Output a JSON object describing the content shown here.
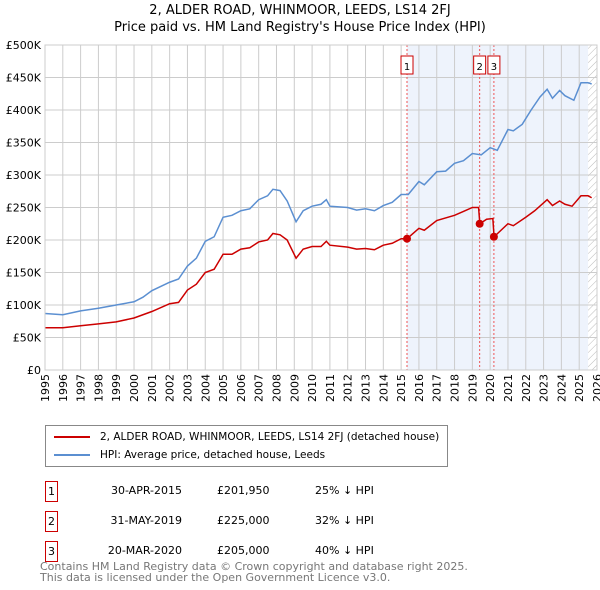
{
  "chart_data": {
    "type": "line",
    "title": "2, ALDER ROAD, WHINMOOR, LEEDS, LS14 2FJ",
    "subtitle": "Price paid vs. HM Land Registry's House Price Index (HPI)",
    "xlim": [
      1995,
      2026
    ],
    "ylim": [
      0,
      500000
    ],
    "x_ticks": [
      "1995",
      "1996",
      "1997",
      "1998",
      "1999",
      "2000",
      "2001",
      "2002",
      "2003",
      "2004",
      "2005",
      "2006",
      "2007",
      "2008",
      "2009",
      "2010",
      "2011",
      "2012",
      "2013",
      "2014",
      "2015",
      "2016",
      "2017",
      "2018",
      "2019",
      "2020",
      "2021",
      "2022",
      "2023",
      "2024",
      "2025",
      "2026"
    ],
    "y_ticks": [
      {
        "v": 0,
        "label": "£0"
      },
      {
        "v": 50000,
        "label": "£50K"
      },
      {
        "v": 100000,
        "label": "£100K"
      },
      {
        "v": 150000,
        "label": "£150K"
      },
      {
        "v": 200000,
        "label": "£200K"
      },
      {
        "v": 250000,
        "label": "£250K"
      },
      {
        "v": 300000,
        "label": "£300K"
      },
      {
        "v": 350000,
        "label": "£350K"
      },
      {
        "v": 400000,
        "label": "£400K"
      },
      {
        "v": 450000,
        "label": "£450K"
      },
      {
        "v": 500000,
        "label": "£500K"
      }
    ],
    "grid": true,
    "shaded_range": [
      2015.33,
      2025.5
    ],
    "hatched_from": 2025.5,
    "series": [
      {
        "name": "2, ALDER ROAD, WHINMOOR, LEEDS, LS14 2FJ (detached house)",
        "color": "#cc0000",
        "x": [
          1995,
          1996,
          1997,
          1998,
          1999,
          2000,
          2001,
          2002,
          2002.5,
          2003,
          2003.5,
          2004,
          2004.5,
          2005,
          2005.5,
          2006,
          2006.5,
          2007,
          2007.5,
          2007.8,
          2008.2,
          2008.6,
          2009.1,
          2009.5,
          2010,
          2010.5,
          2010.8,
          2011,
          2012,
          2012.5,
          2013,
          2013.5,
          2014,
          2014.5,
          2015,
          2015.33,
          2016,
          2016.3,
          2017,
          2018,
          2018.5,
          2019,
          2019.35,
          2019.42,
          2019.8,
          2020.15,
          2020.22,
          2021,
          2021.3,
          2022,
          2022.5,
          2023.2,
          2023.5,
          2023.9,
          2024.2,
          2024.6,
          2025.1,
          2025.5,
          2025.7
        ],
        "y": [
          65,
          65,
          68,
          71,
          74,
          80,
          90,
          102,
          104,
          123,
          132,
          150,
          155,
          178,
          178,
          186,
          188,
          197,
          200,
          210,
          208,
          200,
          172,
          186,
          190,
          190,
          198,
          192,
          189,
          186,
          187,
          185,
          192,
          195,
          202,
          202,
          218,
          215,
          230,
          238,
          244,
          250,
          250,
          225,
          232,
          233,
          205,
          225,
          222,
          235,
          245,
          262,
          253,
          260,
          255,
          252,
          268,
          268,
          265
        ]
      },
      {
        "name": "HPI: Average price, detached house, Leeds",
        "color": "#5b8fd1",
        "x": [
          1995,
          1996,
          1997,
          1998,
          1999,
          2000,
          2000.5,
          2001,
          2002,
          2002.5,
          2003,
          2003.5,
          2004,
          2004.5,
          2005,
          2005.5,
          2006,
          2006.5,
          2007,
          2007.5,
          2007.8,
          2008.2,
          2008.6,
          2009.1,
          2009.5,
          2010,
          2010.5,
          2010.8,
          2011,
          2012,
          2012.5,
          2013,
          2013.5,
          2014,
          2014.5,
          2015,
          2015.4,
          2016,
          2016.3,
          2017,
          2017.5,
          2018,
          2018.5,
          2019,
          2019.5,
          2020,
          2020.4,
          2021,
          2021.3,
          2021.8,
          2022.3,
          2022.8,
          2023.2,
          2023.5,
          2023.9,
          2024.2,
          2024.7,
          2025.1,
          2025.5,
          2025.7
        ],
        "y": [
          87,
          85,
          91,
          95,
          100,
          105,
          112,
          122,
          135,
          140,
          160,
          172,
          198,
          205,
          235,
          238,
          245,
          248,
          262,
          268,
          278,
          276,
          260,
          228,
          245,
          252,
          255,
          262,
          252,
          250,
          246,
          248,
          245,
          253,
          258,
          270,
          270,
          290,
          285,
          305,
          306,
          318,
          322,
          333,
          331,
          342,
          338,
          370,
          368,
          378,
          400,
          420,
          432,
          418,
          430,
          422,
          415,
          442,
          442,
          440
        ]
      }
    ],
    "y_units": "£ thousands",
    "sales": [
      {
        "label": "1",
        "x": 2015.33,
        "y": 201.95,
        "date": "30-APR-2015",
        "price": "£201,950",
        "hpi": "25% ↓ HPI"
      },
      {
        "label": "2",
        "x": 2019.41,
        "y": 225,
        "date": "31-MAY-2019",
        "price": "£225,000",
        "hpi": "32% ↓ HPI"
      },
      {
        "label": "3",
        "x": 2020.21,
        "y": 205,
        "date": "20-MAR-2020",
        "price": "£205,000",
        "hpi": "40% ↓ HPI"
      }
    ]
  },
  "footer": {
    "line1": "Contains HM Land Registry data © Crown copyright and database right 2025.",
    "line2": "This data is licensed under the Open Government Licence v3.0."
  }
}
